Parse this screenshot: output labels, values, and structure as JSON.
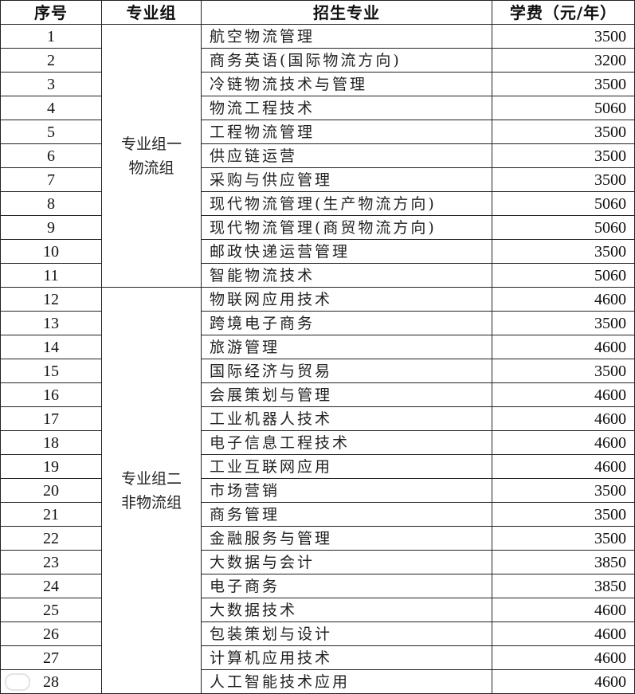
{
  "header": {
    "index": "序号",
    "group": "专业组",
    "major": "招生专业",
    "fee": "学费（元/年）"
  },
  "groups": [
    {
      "line1": "专业组一",
      "line2": "物流组"
    },
    {
      "line1": "专业组二",
      "line2": "非物流组"
    }
  ],
  "rows": [
    {
      "no": "1",
      "major": "航空物流管理",
      "fee": "3500"
    },
    {
      "no": "2",
      "major": "商务英语(国际物流方向)",
      "fee": "3200"
    },
    {
      "no": "3",
      "major": "冷链物流技术与管理",
      "fee": "3500"
    },
    {
      "no": "4",
      "major": "物流工程技术",
      "fee": "5060"
    },
    {
      "no": "5",
      "major": "工程物流管理",
      "fee": "3500"
    },
    {
      "no": "6",
      "major": "供应链运营",
      "fee": "3500"
    },
    {
      "no": "7",
      "major": "采购与供应管理",
      "fee": "3500"
    },
    {
      "no": "8",
      "major": "现代物流管理(生产物流方向)",
      "fee": "5060"
    },
    {
      "no": "9",
      "major": "现代物流管理(商贸物流方向)",
      "fee": "5060"
    },
    {
      "no": "10",
      "major": "邮政快递运营管理",
      "fee": "3500"
    },
    {
      "no": "11",
      "major": "智能物流技术",
      "fee": "5060"
    },
    {
      "no": "12",
      "major": "物联网应用技术",
      "fee": "4600"
    },
    {
      "no": "13",
      "major": "跨境电子商务",
      "fee": "3500"
    },
    {
      "no": "14",
      "major": "旅游管理",
      "fee": "4600"
    },
    {
      "no": "15",
      "major": "国际经济与贸易",
      "fee": "3500"
    },
    {
      "no": "16",
      "major": "会展策划与管理",
      "fee": "4600"
    },
    {
      "no": "17",
      "major": "工业机器人技术",
      "fee": "4600"
    },
    {
      "no": "18",
      "major": "电子信息工程技术",
      "fee": "4600"
    },
    {
      "no": "19",
      "major": "工业互联网应用",
      "fee": "4600"
    },
    {
      "no": "20",
      "major": "市场营销",
      "fee": "3500"
    },
    {
      "no": "21",
      "major": "商务管理",
      "fee": "3500"
    },
    {
      "no": "22",
      "major": "金融服务与管理",
      "fee": "3500"
    },
    {
      "no": "23",
      "major": "大数据与会计",
      "fee": "3850"
    },
    {
      "no": "24",
      "major": "电子商务",
      "fee": "3850"
    },
    {
      "no": "25",
      "major": "大数据技术",
      "fee": "4600"
    },
    {
      "no": "26",
      "major": "包装策划与设计",
      "fee": "4600"
    },
    {
      "no": "27",
      "major": "计算机应用技术",
      "fee": "4600"
    },
    {
      "no": "28",
      "major": "人工智能技术应用",
      "fee": "4600"
    }
  ]
}
